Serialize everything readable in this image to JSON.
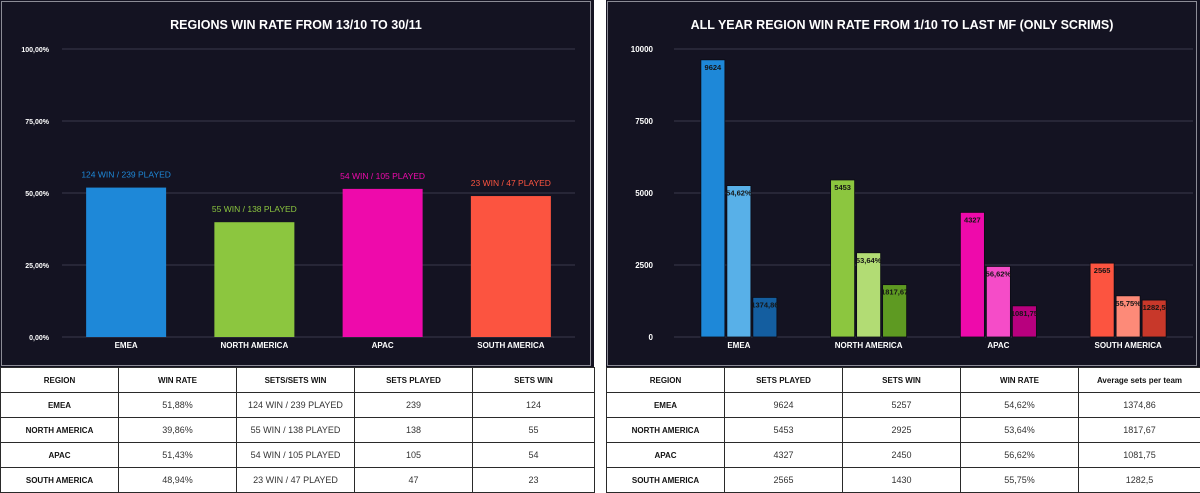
{
  "left": {
    "chart_data": {
      "type": "bar",
      "title": "REGIONS WIN RATE FROM 13/10 TO 30/11",
      "categories": [
        "EMEA",
        "NORTH AMERICA",
        "APAC",
        "SOUTH AMERICA"
      ],
      "values": [
        51.88,
        39.86,
        51.43,
        48.94
      ],
      "colors": [
        "#1e88d8",
        "#8cc63f",
        "#ee0aab",
        "#fc5440"
      ],
      "bar_labels": [
        "124 WIN / 239 PLAYED",
        "55 WIN / 138 PLAYED",
        "54 WIN / 105 PLAYED",
        "23 WIN / 47 PLAYED"
      ],
      "ylim": [
        0,
        100
      ],
      "ytick_values": [
        0,
        25,
        50,
        75,
        100
      ],
      "ytick_labels": [
        "0,00%",
        "25,00%",
        "50,00%",
        "75,00%",
        "100,00%"
      ],
      "grid": true
    },
    "table": {
      "headers": [
        "REGION",
        "WIN RATE",
        "SETS/SETS WIN",
        "SETS PLAYED",
        "SETS WIN"
      ],
      "rows": [
        [
          "EMEA",
          "51,88%",
          "124 WIN / 239 PLAYED",
          "239",
          "124"
        ],
        [
          "NORTH AMERICA",
          "39,86%",
          "55 WIN / 138 PLAYED",
          "138",
          "55"
        ],
        [
          "APAC",
          "51,43%",
          "54 WIN / 105 PLAYED",
          "105",
          "54"
        ],
        [
          "SOUTH AMERICA",
          "48,94%",
          "23 WIN / 47 PLAYED",
          "47",
          "23"
        ]
      ]
    }
  },
  "right": {
    "chart_data": {
      "type": "bar",
      "title": "ALL YEAR REGION WIN RATE FROM 1/10 TO LAST MF (ONLY SCRIMS)",
      "categories": [
        "EMEA",
        "NORTH AMERICA",
        "APAC",
        "SOUTH AMERICA"
      ],
      "series": [
        {
          "values": [
            9624,
            5453,
            4327,
            2565
          ],
          "labels": [
            "9624",
            "5453",
            "4327",
            "2565"
          ]
        },
        {
          "values": [
            5257,
            2925,
            2450,
            1430
          ],
          "labels": [
            "54,62%",
            "53,64%",
            "56,62%",
            "55,75%"
          ]
        },
        {
          "values": [
            1374.86,
            1817.67,
            1081.75,
            1282.5
          ],
          "labels": [
            "1374,86",
            "1817,67",
            "1081,75",
            "1282,5"
          ]
        }
      ],
      "colors": [
        [
          "#1e88d8",
          "#58b0e8",
          "#145ea0"
        ],
        [
          "#8cc63f",
          "#b2dc74",
          "#5e9a22"
        ],
        [
          "#ee0aab",
          "#f54cc8",
          "#b8007e"
        ],
        [
          "#fc5440",
          "#fd8a78",
          "#c8382a"
        ]
      ],
      "ylim": [
        0,
        10000
      ],
      "ytick_values": [
        0,
        2500,
        5000,
        7500,
        10000
      ],
      "ytick_labels": [
        "0",
        "2500",
        "5000",
        "7500",
        "10000"
      ],
      "grid": true
    },
    "table": {
      "headers": [
        "REGION",
        "SETS PLAYED",
        "SETS WIN",
        "WIN RATE",
        "Average sets per team"
      ],
      "rows": [
        [
          "EMEA",
          "9624",
          "5257",
          "54,62%",
          "1374,86"
        ],
        [
          "NORTH AMERICA",
          "5453",
          "2925",
          "53,64%",
          "1817,67"
        ],
        [
          "APAC",
          "4327",
          "2450",
          "56,62%",
          "1081,75"
        ],
        [
          "SOUTH AMERICA",
          "2565",
          "1430",
          "55,75%",
          "1282,5"
        ]
      ]
    }
  }
}
